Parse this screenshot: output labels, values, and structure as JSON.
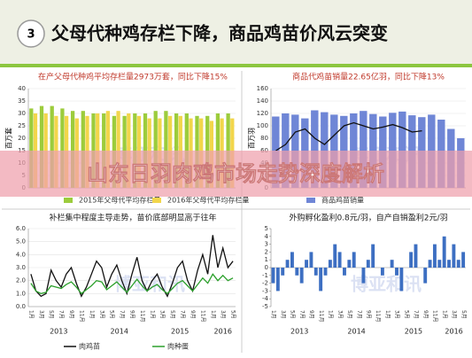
{
  "header": {
    "number": "3",
    "title": "父母代种鸡存栏下降，商品鸡苗价风云突变"
  },
  "banner": "山东日羽肉鸡市场走势深度解析",
  "watermark": "博亚和讯",
  "chart_data": [
    {
      "type": "bar",
      "title": "在产父母代种鸡平均存栏量2973万套，同比下降15%",
      "y_label": "百万套",
      "categories": [
        null,
        null,
        null,
        null,
        null,
        null,
        null,
        null,
        null,
        null,
        null,
        null,
        null,
        null,
        null,
        null,
        null,
        null,
        null,
        null
      ],
      "series": [
        {
          "name": "2015年父母代平均存栏量",
          "color": "#9ccc3c",
          "values": [
            32,
            33,
            33,
            32,
            31,
            31,
            30,
            30,
            29,
            29,
            30,
            30,
            31,
            31,
            30,
            30,
            29,
            29,
            30,
            30
          ]
        },
        {
          "name": "2016年父母代平均存栏量",
          "color": "#f2d64b",
          "values": [
            30,
            30,
            29,
            29,
            28,
            29,
            30,
            31,
            31,
            30,
            29,
            28,
            28,
            29,
            29,
            28,
            28,
            27,
            28,
            28
          ]
        }
      ],
      "ylim": [
        0,
        40
      ],
      "yticks": [
        0,
        5,
        10,
        15,
        20,
        25,
        30,
        35,
        40
      ],
      "grid": true
    },
    {
      "type": "bar",
      "title": "商品代鸡苗销量22.65亿羽，同比下降13%",
      "y_label": "百万羽",
      "categories": [
        null,
        null,
        null,
        null,
        null,
        null,
        null,
        null,
        null,
        null,
        null,
        null,
        null,
        null,
        null,
        null,
        null,
        null,
        null,
        null
      ],
      "series": [
        {
          "name": "商品鸡苗销量",
          "color": "#6f86d6",
          "values": [
            115,
            120,
            118,
            112,
            125,
            122,
            118,
            116,
            120,
            124,
            119,
            115,
            121,
            123,
            117,
            114,
            118,
            110,
            95,
            80
          ]
        },
        {
          "type": "line",
          "color": "#111111",
          "values": [
            60,
            70,
            90,
            95,
            80,
            70,
            85,
            100,
            105,
            100,
            95,
            98,
            102,
            97,
            90,
            92,
            null,
            null,
            null,
            null
          ]
        }
      ],
      "ylim": [
        0,
        160
      ],
      "yticks": [
        0,
        20,
        40,
        60,
        80,
        100,
        120,
        140,
        160
      ],
      "grid": true
    },
    {
      "type": "line",
      "title": "补栏集中程度主导走势，苗价底部明显高于往年",
      "categories": [
        "1月",
        null,
        "3月",
        null,
        "5月",
        null,
        "7月",
        null,
        "9月",
        null,
        "11月",
        null,
        "1月",
        null,
        "3月",
        null,
        "5月",
        null,
        "7月",
        null,
        "9月",
        null,
        "11月",
        null,
        "1月",
        null,
        "3月",
        null,
        "5月",
        null,
        "7月",
        null,
        "9月",
        null,
        "11月",
        null,
        "1月",
        null,
        "3月",
        null,
        "5月"
      ],
      "year_labels": [
        "2013",
        "2014",
        "2015",
        "2016"
      ],
      "series": [
        {
          "name": "肉鸡苗",
          "color": "#111111",
          "values": [
            2.5,
            1.2,
            0.8,
            1.0,
            2.8,
            2.0,
            1.5,
            2.5,
            3.0,
            1.8,
            0.8,
            1.5,
            2.5,
            3.5,
            3.0,
            1.5,
            2.5,
            3.2,
            2.0,
            1.0,
            2.5,
            3.8,
            2.0,
            1.2,
            2.0,
            2.5,
            1.5,
            0.8,
            1.8,
            3.0,
            3.5,
            2.0,
            1.2,
            2.8,
            4.0,
            2.5,
            5.5,
            3.0,
            4.5,
            3.0,
            3.5
          ]
        },
        {
          "name": "肉种蛋",
          "color": "#2ca02c",
          "values": [
            1.8,
            1.2,
            1.0,
            1.1,
            1.6,
            1.5,
            1.4,
            1.7,
            1.9,
            1.5,
            1.0,
            1.3,
            1.6,
            2.0,
            1.9,
            1.3,
            1.6,
            1.9,
            1.5,
            1.1,
            1.6,
            2.1,
            1.6,
            1.2,
            1.5,
            1.7,
            1.3,
            1.0,
            1.4,
            1.8,
            2.0,
            1.6,
            1.2,
            1.7,
            2.2,
            1.8,
            2.5,
            2.0,
            2.4,
            2.0,
            2.2
          ]
        }
      ],
      "ylim": [
        0,
        6
      ],
      "yticks": [
        {
          "value": 0,
          "label": "0.0"
        },
        {
          "value": 1,
          "label": "1.0"
        },
        {
          "value": 2,
          "label": "2.0"
        },
        {
          "value": 3,
          "label": "3.0"
        },
        {
          "value": 4,
          "label": "4.0"
        },
        {
          "value": 5,
          "label": "5.0"
        },
        {
          "value": 6,
          "label": "6.0"
        }
      ],
      "grid": true
    },
    {
      "type": "bar",
      "title": "外购孵化盈利0.8元/羽，自产自销盈利2元/羽",
      "categories": [
        "1月",
        null,
        "3月",
        null,
        "5月",
        null,
        "7月",
        null,
        "9月",
        null,
        "11月",
        null,
        "1月",
        null,
        "3月",
        null,
        "5月",
        null,
        "7月",
        null,
        "9月",
        null,
        "11月",
        null,
        "1月",
        null,
        "3月",
        null,
        "5月",
        null,
        "7月",
        null,
        "9月",
        null,
        "11月",
        null,
        "1月",
        null,
        "3月",
        null,
        "5月"
      ],
      "year_labels": [
        "2013",
        "2014",
        "2015",
        "2016"
      ],
      "series": [
        {
          "color": "#3d6fc2",
          "values": [
            -2,
            -3,
            -1,
            1,
            2,
            -1,
            -2,
            1,
            2,
            -1,
            -3,
            -1,
            1,
            3,
            2,
            -1,
            1,
            2,
            0,
            -2,
            1,
            3,
            0,
            -1,
            0,
            1,
            -1,
            -3,
            0,
            2,
            3,
            0,
            -2,
            1,
            3,
            1,
            4,
            1,
            3,
            1,
            2
          ]
        }
      ],
      "ylim": [
        -5,
        5
      ],
      "yticks": [
        -5,
        -4,
        -3,
        -2,
        -1,
        0,
        1,
        2,
        3,
        4,
        5
      ],
      "grid": false
    }
  ]
}
